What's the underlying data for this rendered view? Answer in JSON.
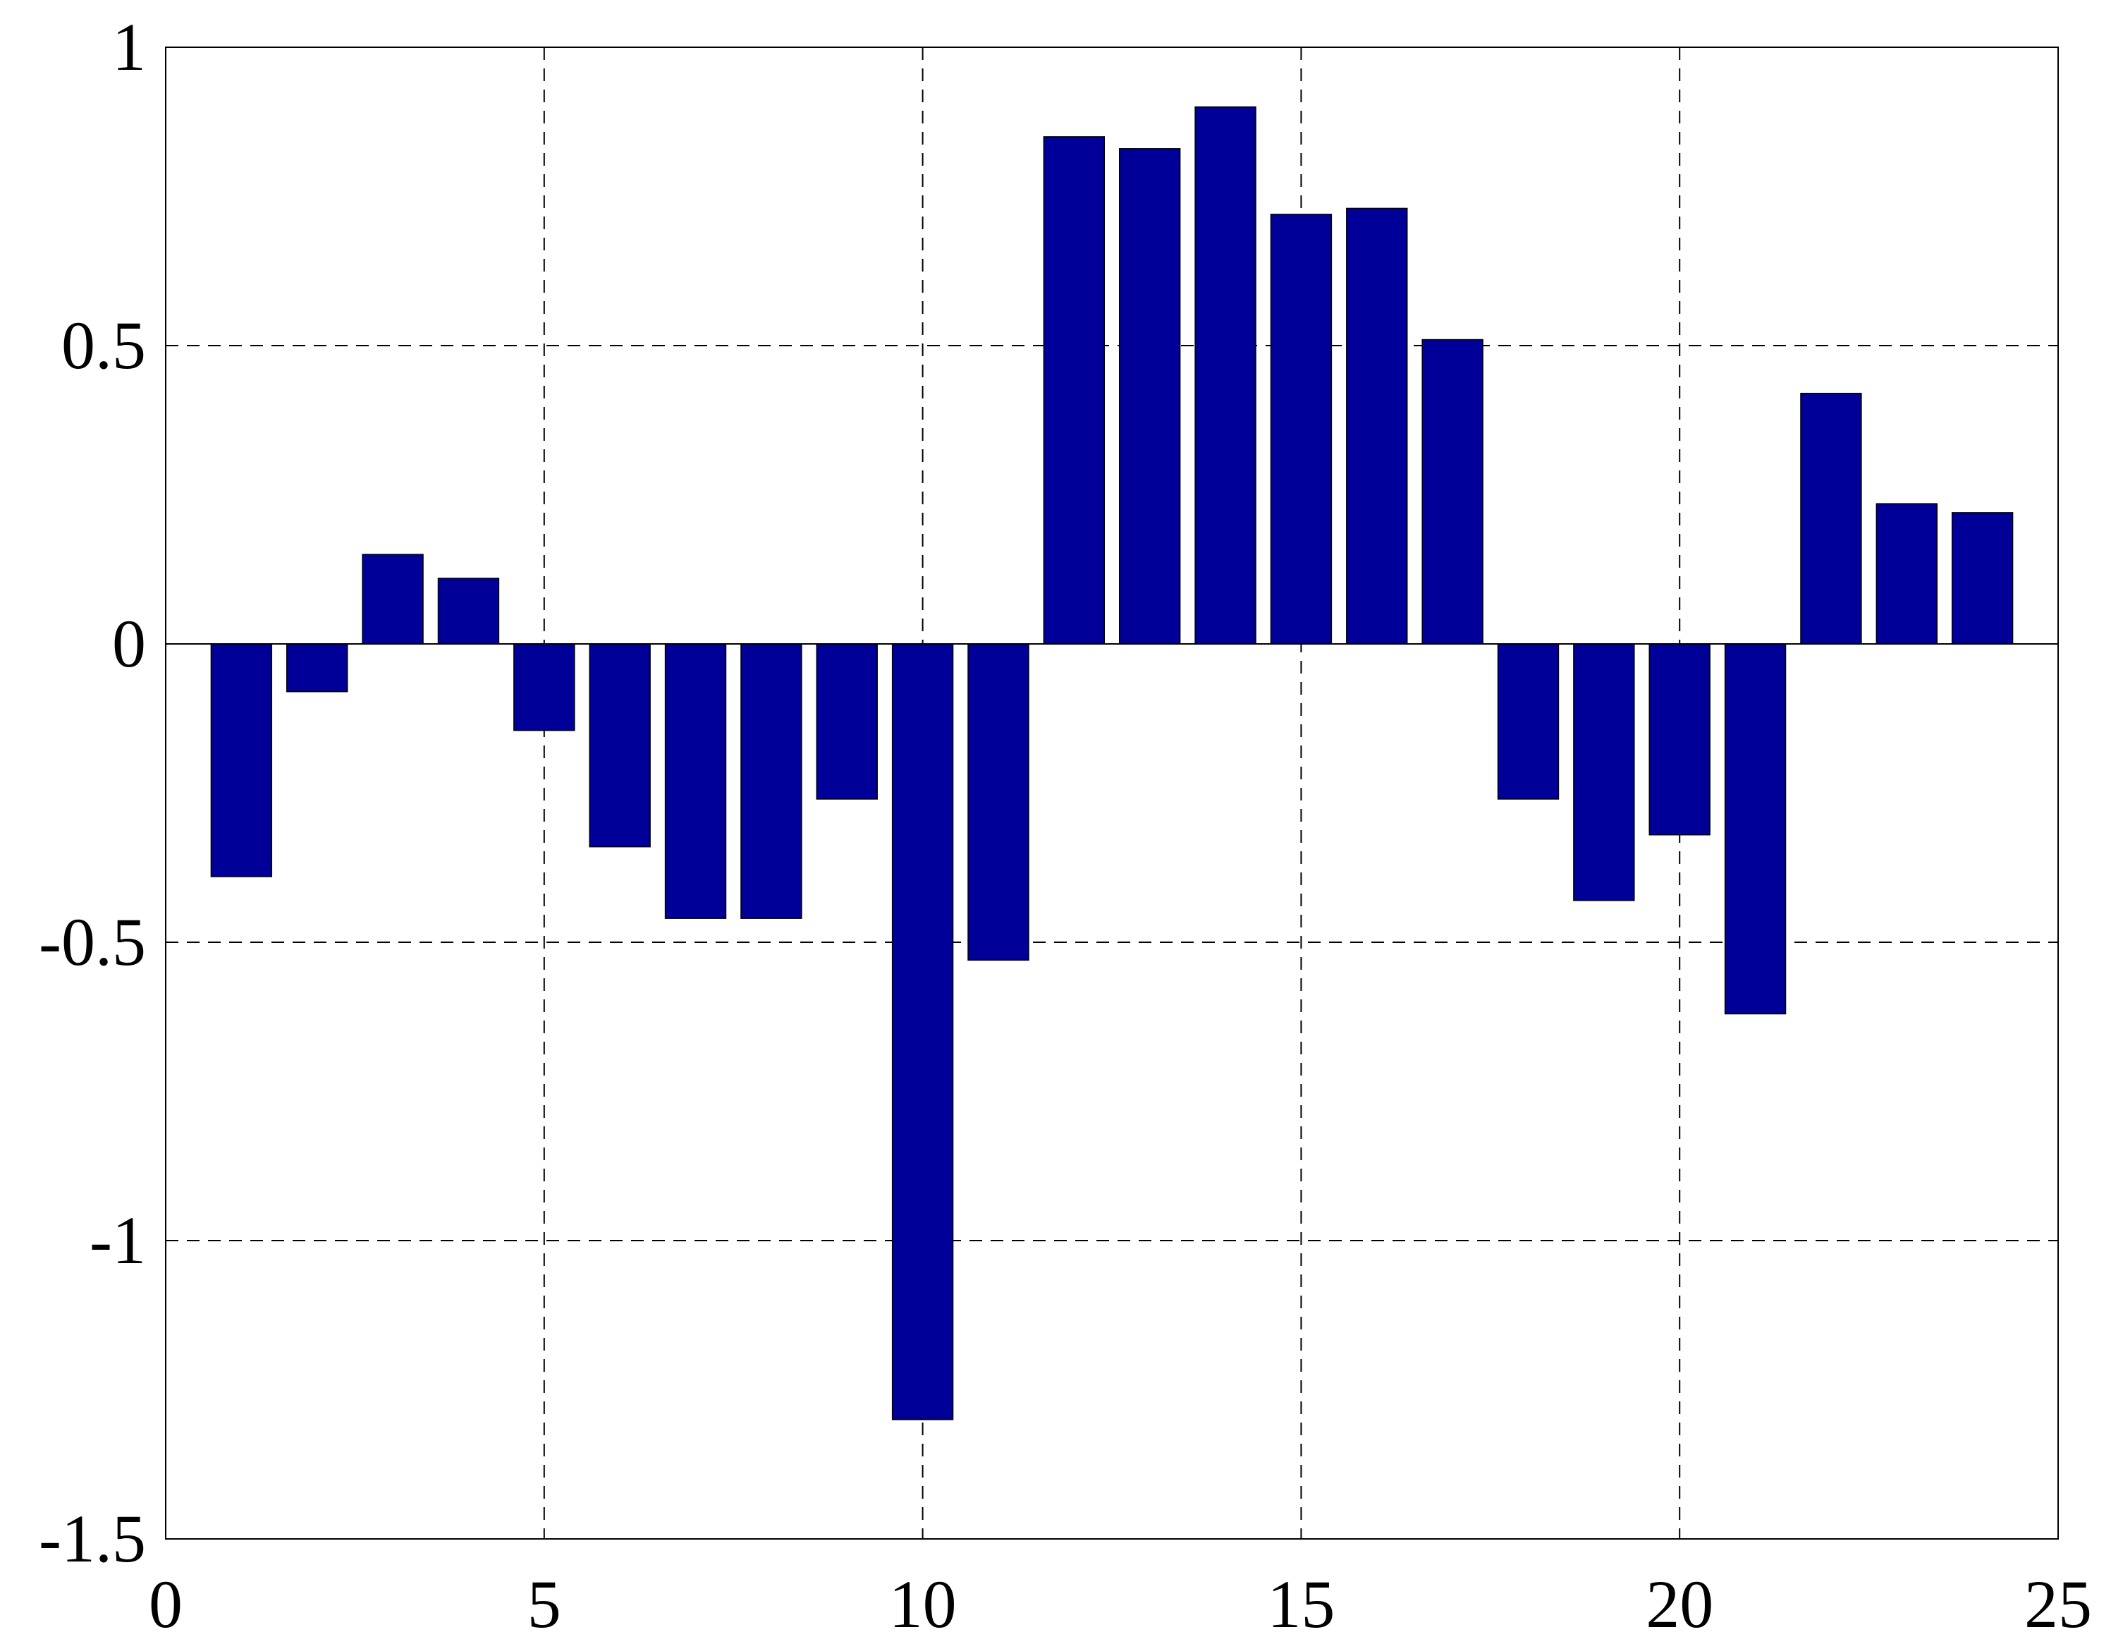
{
  "chart_data": {
    "type": "bar",
    "x": [
      1,
      2,
      3,
      4,
      5,
      6,
      7,
      8,
      9,
      10,
      11,
      12,
      13,
      14,
      15,
      16,
      17,
      18,
      19,
      20,
      21,
      22,
      23,
      24
    ],
    "values": [
      -0.39,
      -0.08,
      0.15,
      0.11,
      -0.145,
      -0.34,
      -0.46,
      -0.46,
      -0.26,
      -1.3,
      -0.53,
      0.85,
      0.83,
      0.9,
      0.72,
      0.73,
      0.51,
      -0.26,
      -0.43,
      -0.32,
      -0.62,
      0.42,
      0.235,
      0.22
    ],
    "color": "#000099",
    "xlim": [
      0,
      25
    ],
    "xticks": [
      0,
      5,
      10,
      15,
      20,
      25
    ],
    "ylim": [
      -1.5,
      1
    ],
    "yticks": [
      -1.5,
      -1,
      -0.5,
      0,
      0.5,
      1
    ],
    "grid": true
  }
}
